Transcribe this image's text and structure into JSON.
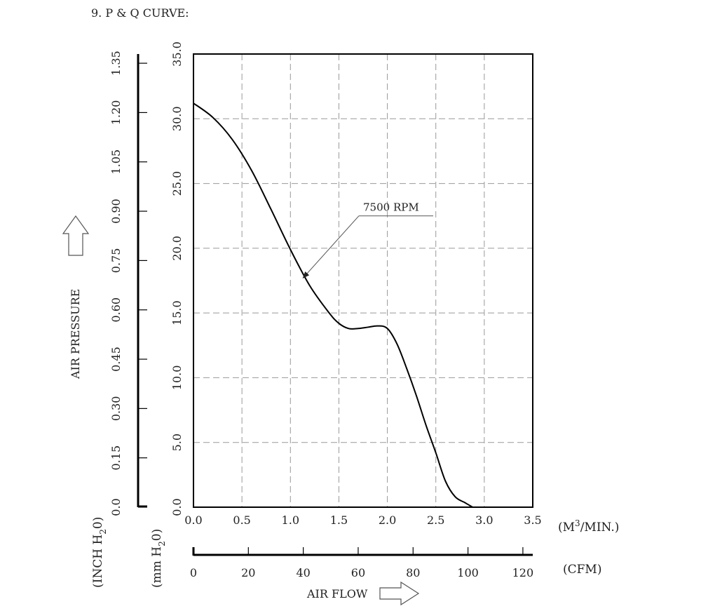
{
  "heading": "9. P & Q CURVE:",
  "chart_data": {
    "type": "line",
    "title": "9. P & Q CURVE:",
    "xlabel": "AIR FLOW",
    "ylabel": "AIR PRESSURE",
    "x_unit_primary": "(M",
    "x_unit_primary_sup": "3",
    "x_unit_primary_tail": "/MIN.)",
    "x_unit_secondary": "(CFM)",
    "y_unit_primary_a": "(mm H",
    "y_unit_primary_sub": "2",
    "y_unit_primary_b": "0)",
    "y_unit_secondary_a": "(INCH H",
    "y_unit_secondary_sub": "2",
    "y_unit_secondary_b": "0)",
    "xlim": [
      0,
      3.5
    ],
    "ylim": [
      0,
      35
    ],
    "x_ticks": [
      "0.0",
      "0.5",
      "1.0",
      "1.5",
      "2.0",
      "2.5",
      "3.0",
      "3.5"
    ],
    "y_ticks": [
      "0.0",
      "5.0",
      "10.0",
      "15.0",
      "20.0",
      "25.0",
      "30.0",
      "35.0"
    ],
    "cfm_ticks": [
      "0",
      "20",
      "40",
      "60",
      "80",
      "100",
      "120"
    ],
    "cfm_lim": [
      0,
      123.6
    ],
    "inch_ticks": [
      "0.0",
      "0.15",
      "0.30",
      "0.45",
      "0.60",
      "0.75",
      "0.90",
      "1.05",
      "1.20",
      "1.35"
    ],
    "inch_lim": [
      0,
      1.378
    ],
    "grid": true,
    "series": [
      {
        "name": "7500 RPM",
        "x": [
          0.0,
          0.2,
          0.4,
          0.6,
          0.8,
          1.0,
          1.2,
          1.4,
          1.5,
          1.6,
          1.7,
          1.8,
          1.9,
          2.0,
          2.1,
          2.2,
          2.3,
          2.4,
          2.5,
          2.6,
          2.7,
          2.8,
          2.88
        ],
        "y": [
          31.2,
          30.1,
          28.4,
          26.0,
          23.0,
          19.9,
          17.1,
          15.0,
          14.2,
          13.8,
          13.8,
          13.9,
          14.0,
          13.8,
          12.6,
          10.7,
          8.6,
          6.3,
          4.2,
          2.0,
          0.8,
          0.35,
          0.0
        ]
      }
    ],
    "annotations": [
      {
        "text": "7500 RPM",
        "x": 1.75,
        "y": 22.5,
        "arrow_to_x": 1.13,
        "arrow_to_y": 17.7
      }
    ],
    "color": "#000000",
    "grid_color": "#999999"
  }
}
